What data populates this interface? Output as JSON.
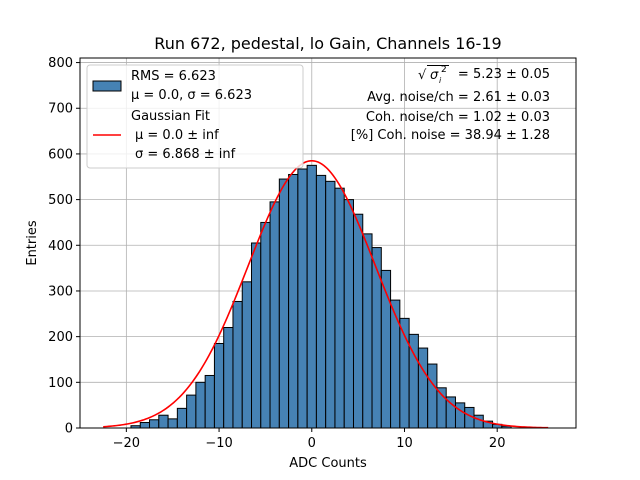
{
  "chart_data": {
    "type": "bar",
    "title": "Run 672, pedestal, lo Gain, Channels 16-19",
    "xlabel": "ADC Counts",
    "ylabel": "Entries",
    "xlim": [
      -25,
      28.5
    ],
    "ylim": [
      0,
      810
    ],
    "xticks": [
      -20,
      -10,
      0,
      10,
      20
    ],
    "yticks": [
      0,
      100,
      200,
      300,
      400,
      500,
      600,
      700,
      800
    ],
    "grid": true,
    "legend_position": "top-left",
    "bar_color": "#4682b4",
    "bar_edge_color": "#000000",
    "fit_color": "#ff0000",
    "bin_width": 1,
    "bins": [
      {
        "x": -19,
        "count": 5
      },
      {
        "x": -18,
        "count": 12
      },
      {
        "x": -17,
        "count": 18
      },
      {
        "x": -16,
        "count": 28
      },
      {
        "x": -15,
        "count": 20
      },
      {
        "x": -14,
        "count": 43
      },
      {
        "x": -13,
        "count": 72
      },
      {
        "x": -12,
        "count": 100
      },
      {
        "x": -11,
        "count": 115
      },
      {
        "x": -10,
        "count": 185
      },
      {
        "x": -9,
        "count": 220
      },
      {
        "x": -8,
        "count": 277
      },
      {
        "x": -7,
        "count": 320
      },
      {
        "x": -6,
        "count": 405
      },
      {
        "x": -5,
        "count": 450
      },
      {
        "x": -4,
        "count": 495
      },
      {
        "x": -3,
        "count": 545
      },
      {
        "x": -2,
        "count": 555
      },
      {
        "x": -1,
        "count": 567
      },
      {
        "x": 0,
        "count": 575
      },
      {
        "x": 1,
        "count": 553
      },
      {
        "x": 2,
        "count": 540
      },
      {
        "x": 3,
        "count": 525
      },
      {
        "x": 4,
        "count": 500
      },
      {
        "x": 5,
        "count": 468
      },
      {
        "x": 6,
        "count": 425
      },
      {
        "x": 7,
        "count": 395
      },
      {
        "x": 8,
        "count": 345
      },
      {
        "x": 9,
        "count": 280
      },
      {
        "x": 10,
        "count": 240
      },
      {
        "x": 11,
        "count": 205
      },
      {
        "x": 12,
        "count": 175
      },
      {
        "x": 13,
        "count": 140
      },
      {
        "x": 14,
        "count": 88
      },
      {
        "x": 15,
        "count": 68
      },
      {
        "x": 16,
        "count": 55
      },
      {
        "x": 17,
        "count": 45
      },
      {
        "x": 18,
        "count": 28
      },
      {
        "x": 19,
        "count": 15
      },
      {
        "x": 20,
        "count": 8
      },
      {
        "x": 21,
        "count": 4
      }
    ],
    "fit": {
      "mu": 0.0,
      "sigma": 6.868,
      "amplitude": 585,
      "x_range": [
        -22.5,
        25.5
      ]
    },
    "legend": {
      "hist_line1": "RMS = 6.623",
      "hist_line2": "μ = 0.0, σ = 6.623",
      "fit_line1": "Gaussian Fit",
      "fit_line2": "μ = 0.0 ± inf",
      "fit_line3": "σ = 6.868 ± inf"
    },
    "annotations": {
      "sqrt_sigma_value": "= 5.23 ± 0.05",
      "avg_noise": "Avg. noise/ch = 2.61 ± 0.03",
      "coh_noise": "Coh. noise/ch = 1.02 ± 0.03",
      "pct_coh_noise": "[%] Coh. noise = 38.94 ± 1.28"
    }
  }
}
